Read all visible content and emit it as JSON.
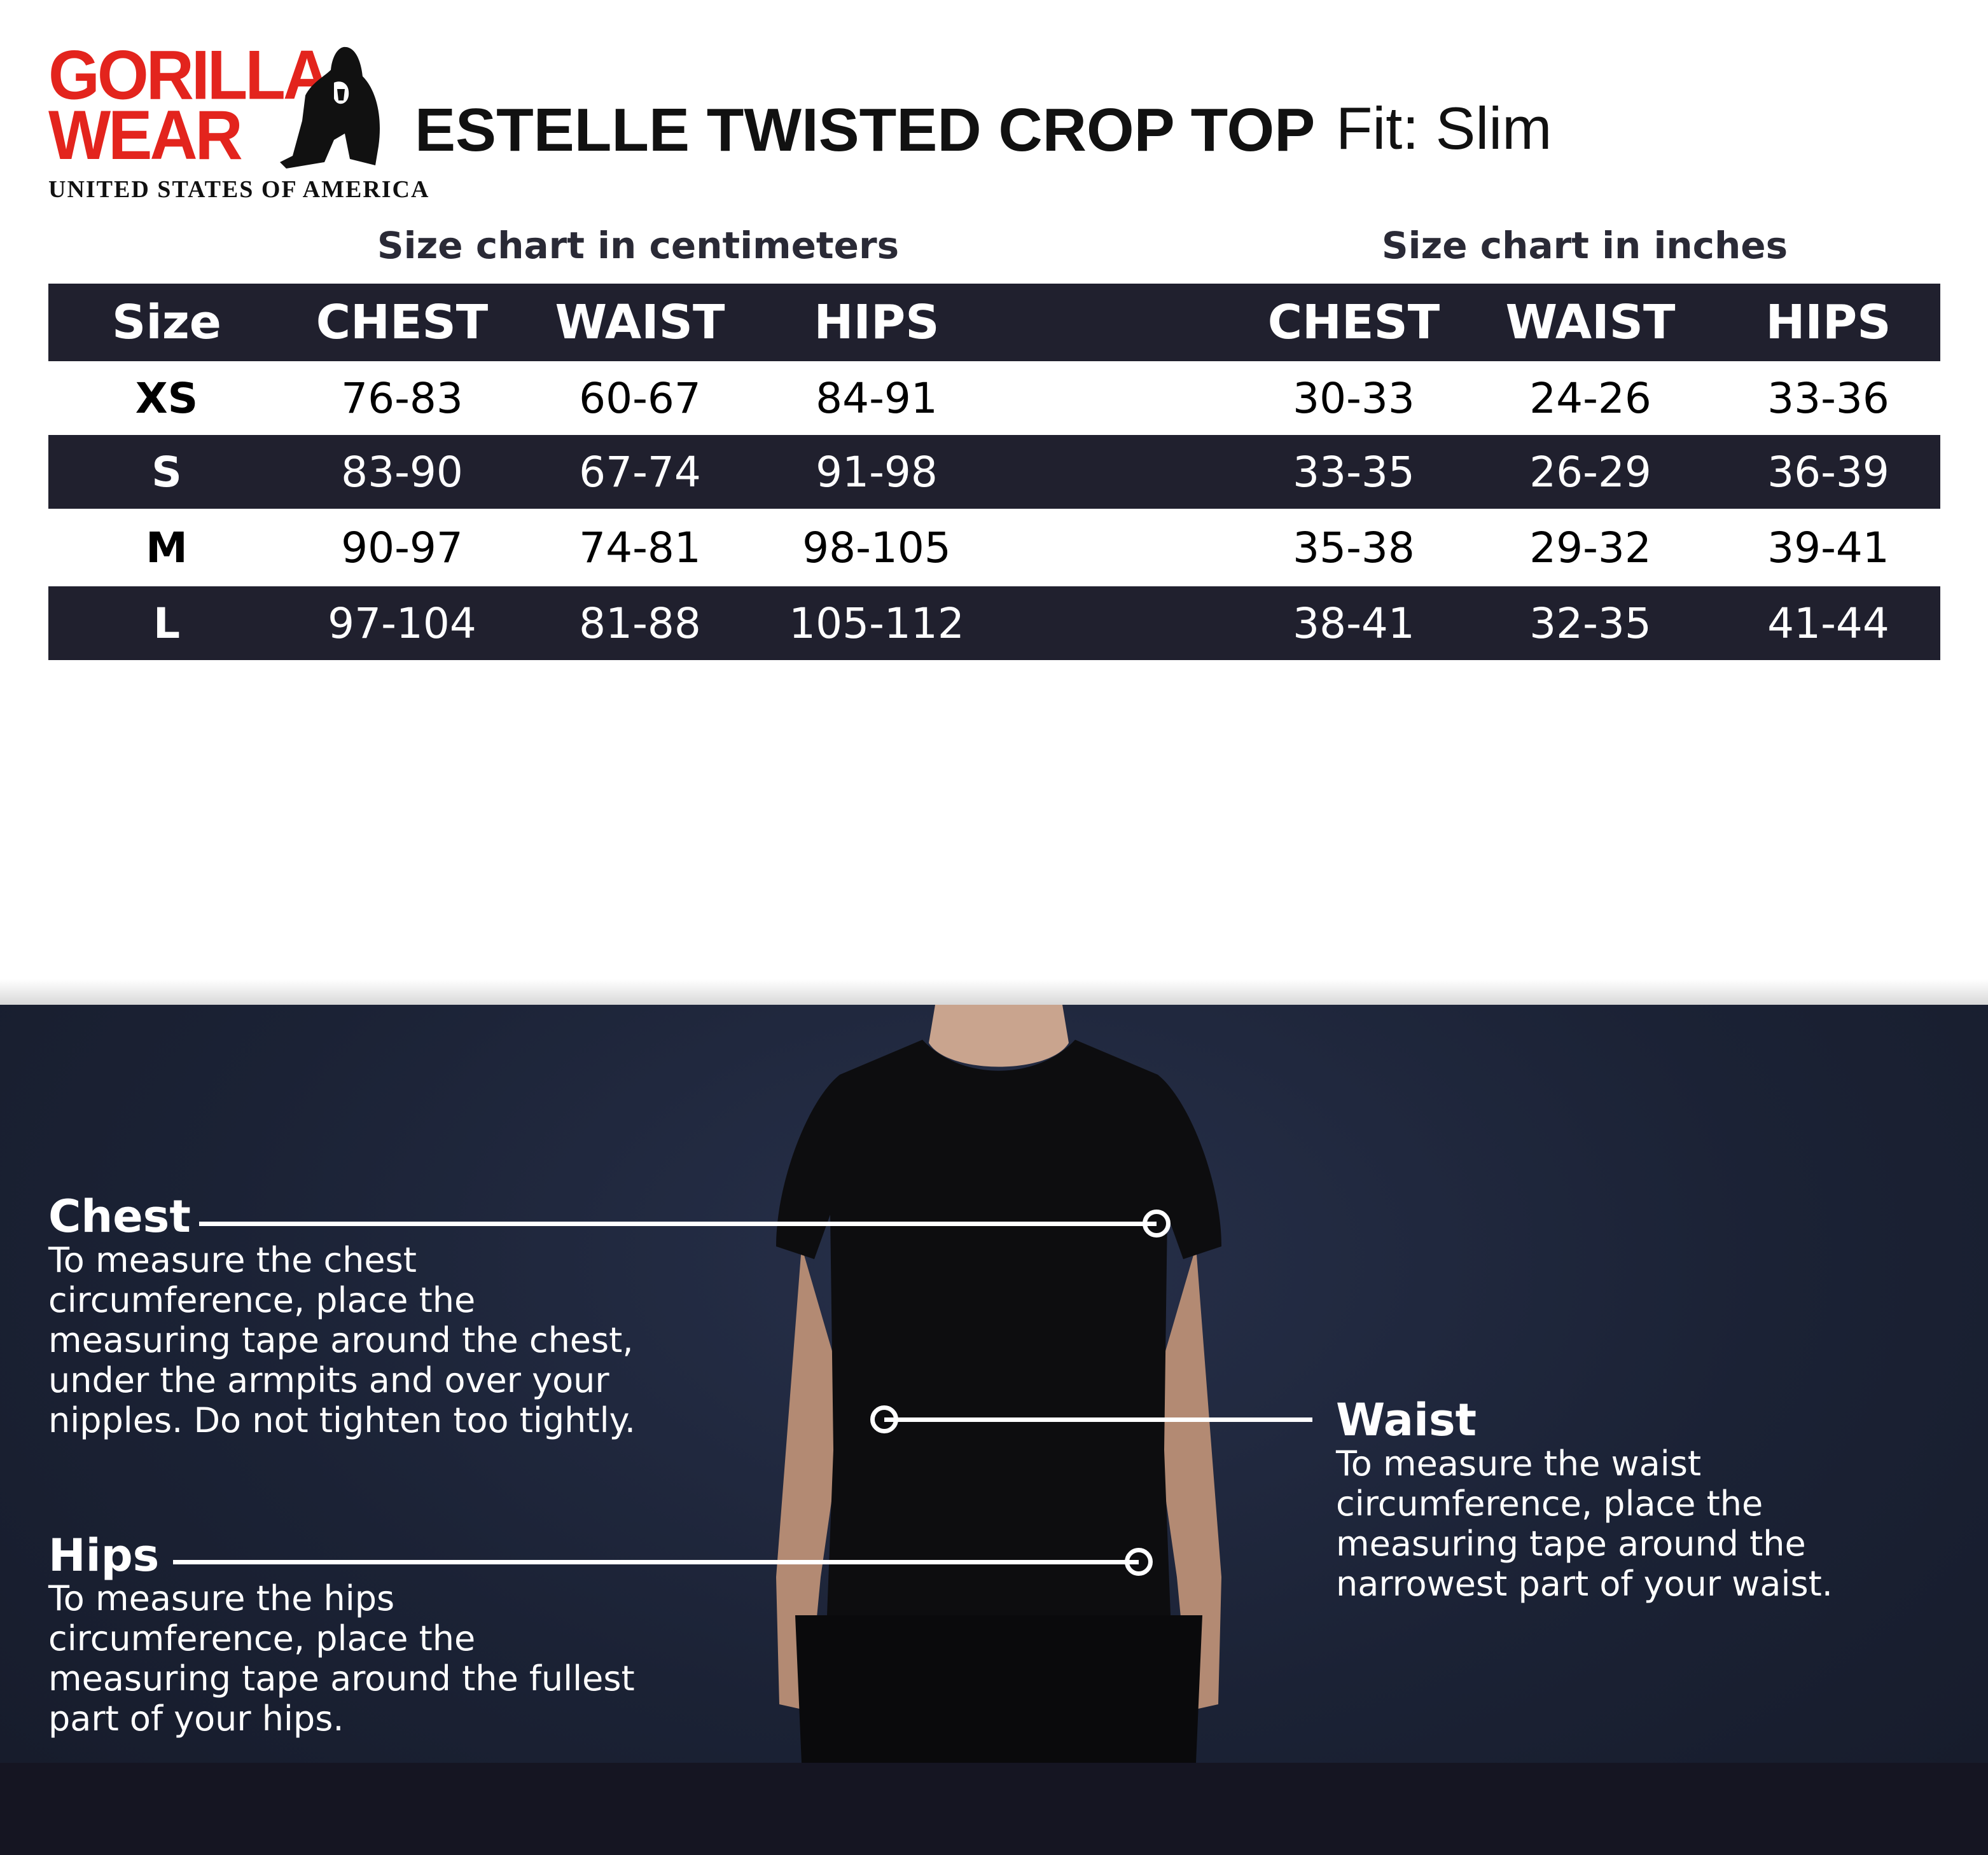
{
  "brand": {
    "logo_text": "GORILLA WEAR",
    "logo_subtitle": "UNITED STATES OF AMERICA",
    "logo_color": "#e3241d"
  },
  "header": {
    "title": "ESTELLE TWISTED CROP TOP",
    "fit": "Fit: Slim"
  },
  "subtitles": {
    "cm": "Size chart in centimeters",
    "inches": "Size chart in inches"
  },
  "table": {
    "columns": [
      "Size",
      "CHEST",
      "WAIST",
      "HIPS",
      "CHEST",
      "WAIST",
      "HIPS"
    ],
    "rows": [
      [
        "XS",
        "76-83",
        "60-67",
        "84-91",
        "30-33",
        "24-26",
        "33-36"
      ],
      [
        "S",
        "83-90",
        "67-74",
        "91-98",
        "33-35",
        "26-29",
        "36-39"
      ],
      [
        "M",
        "90-97",
        "74-81",
        "98-105",
        "35-38",
        "29-32",
        "39-41"
      ],
      [
        "L",
        "97-104",
        "81-88",
        "105-112",
        "38-41",
        "32-35",
        "41-44"
      ]
    ],
    "dark_color": "#20202e"
  },
  "guide": {
    "chest": {
      "title": "Chest",
      "text": "To measure the chest circumference, place the measuring tape around the chest, under the armpits and over your nipples. Do not tighten too tightly."
    },
    "waist": {
      "title": "Waist",
      "text": "To measure the waist circumference, place the measuring tape around the narrowest part of your waist."
    },
    "hips": {
      "title": "Hips",
      "text": "To measure the hips circumference, place the measuring tape around the fullest part of your hips."
    }
  }
}
